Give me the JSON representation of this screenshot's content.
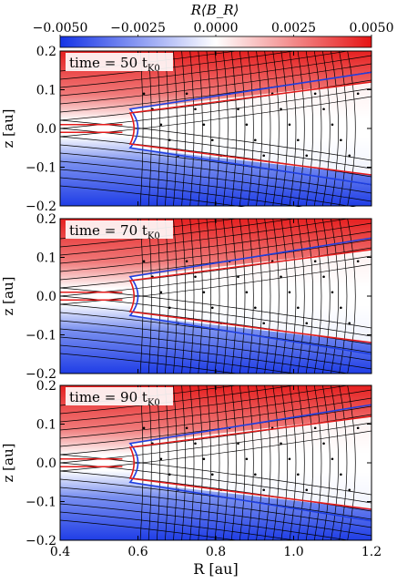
{
  "chart_data": {
    "type": "heatmap",
    "figure": {
      "colorbar": {
        "label": "R⟨B_R⟩",
        "ticks": [
          "−0.0050",
          "−0.0025",
          "0.0000",
          "0.0025",
          "0.0050"
        ],
        "range": [
          -0.005,
          0.005
        ],
        "colormap": [
          "#1433e6",
          "#ffffff",
          "#e61414"
        ]
      },
      "xlabel": "R [au]",
      "ylabel": "z [au]",
      "xticks": [
        "0.4",
        "0.6",
        "0.8",
        "1.0",
        "1.2"
      ],
      "yticks": [
        "0.2",
        "0.1",
        "0.0",
        "−0.1",
        "−0.2"
      ],
      "xlim": [
        0.4,
        1.2
      ],
      "ylim": [
        -0.2,
        0.2
      ],
      "contour_colors": {
        "outer": "#1f3fe0",
        "inner": "#e31b1b"
      },
      "streamline_color": "#000000"
    },
    "panels": [
      {
        "time_label": "time = 50 t",
        "subscript": "K0",
        "outer_top": [
          0.58,
          0.05,
          1.2,
          0.145
        ],
        "inner_top": [
          0.58,
          0.05,
          1.2,
          0.12
        ]
      },
      {
        "time_label": "time = 70 t",
        "subscript": "K0",
        "outer_top": [
          0.58,
          0.05,
          1.2,
          0.15
        ],
        "inner_top": [
          0.58,
          0.05,
          1.2,
          0.12
        ]
      },
      {
        "time_label": "time = 90 t",
        "subscript": "K0",
        "outer_top": [
          0.58,
          0.05,
          1.2,
          0.15
        ],
        "inner_top": [
          0.58,
          0.05,
          1.2,
          0.12
        ]
      }
    ]
  }
}
